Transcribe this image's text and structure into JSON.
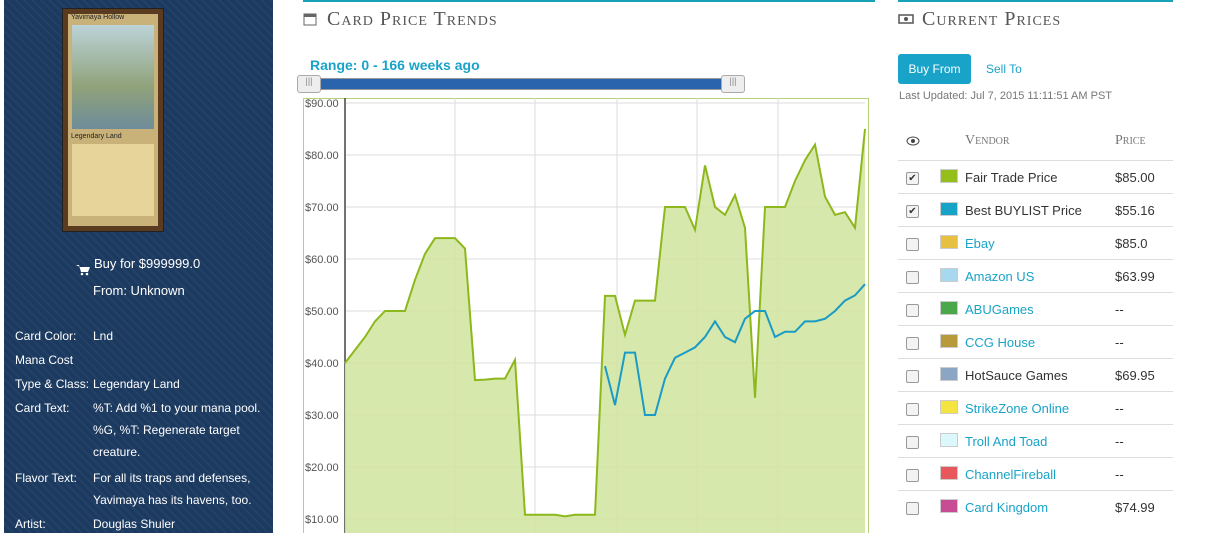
{
  "sidebar": {
    "card_name": "Yavimaya Hollow",
    "card_type": "Legendary Land",
    "buy_for": "Buy for $999999.0",
    "from": "From: Unknown",
    "details": [
      {
        "label": "Card Color:",
        "value": "Lnd"
      },
      {
        "label": "Mana Cost"
      },
      {
        "label": "Type & Class:",
        "value": "Legendary Land"
      },
      {
        "label": "Card Text:",
        "value": "%T: Add %1 to your mana pool.",
        "value2": "%G, %T: Regenerate target creature."
      },
      {
        "label": "Flavor Text:",
        "value": "For all its traps and defenses, Yavimaya has its havens, too."
      },
      {
        "label": "Artist:",
        "value": "Douglas Shuler"
      }
    ]
  },
  "price_trends": {
    "title": "Card Price Trends",
    "range": "Range: 0 - 166 weeks ago"
  },
  "chart_data": {
    "type": "area",
    "ylim": [
      7.3,
      90
    ],
    "grid": true,
    "yticks": [
      {
        "value": 10,
        "label": "$10.00"
      },
      {
        "value": 20,
        "label": "$20.00"
      },
      {
        "value": 30,
        "label": "$30.00"
      },
      {
        "value": 40,
        "label": "$40.00"
      },
      {
        "value": 50,
        "label": "$50.00"
      },
      {
        "value": 60,
        "label": "$60.00"
      },
      {
        "value": 70,
        "label": "$70.00"
      },
      {
        "value": 80,
        "label": "$80.00"
      },
      {
        "value": 90,
        "label": "$90.00"
      }
    ],
    "series": [
      {
        "name": "Fair Trade Price",
        "color": "#8db81c",
        "fill": "#d3e6a3",
        "values": [
          40,
          42.5,
          45,
          48,
          50,
          50,
          50,
          56,
          61,
          64,
          64,
          64,
          62,
          36.7,
          36.8,
          37,
          37,
          40.6,
          10.8,
          10.8,
          10.8,
          10.8,
          10.5,
          10.8,
          10.8,
          10.8,
          52.9,
          52.9,
          45.4,
          52,
          52,
          52,
          70,
          70,
          70,
          65.6,
          78,
          70,
          68.5,
          72.3,
          66,
          33.3,
          70,
          70,
          70,
          75,
          79,
          82,
          72,
          68.5,
          69,
          66,
          85
        ]
      },
      {
        "name": "Best BUYLIST Price",
        "color": "#1a9bc5",
        "values": [
          null,
          null,
          null,
          null,
          null,
          null,
          null,
          null,
          null,
          null,
          null,
          null,
          null,
          null,
          null,
          null,
          null,
          null,
          null,
          null,
          null,
          null,
          null,
          null,
          null,
          null,
          39.4,
          31.9,
          42,
          42,
          30,
          30,
          37,
          41,
          42,
          43,
          45,
          48,
          45,
          44,
          48.5,
          50,
          50,
          45,
          46,
          46,
          48,
          48,
          48.5,
          50,
          52,
          53,
          55.16
        ]
      }
    ]
  },
  "current_prices": {
    "title": "Current Prices",
    "buy_button": "Buy From",
    "sell_link": "Sell To",
    "last_updated": "Last Updated: Jul 7, 2015 11:11:51 AM PST",
    "vendor_header": "Vendor",
    "price_header": "Price",
    "vendors": [
      {
        "name": "Fair Trade Price",
        "color": "#94be1b",
        "price": "$85.00",
        "checked": true
      },
      {
        "name": "Best BUYLIST Price",
        "color": "#17a2c7",
        "price": "$55.16",
        "checked": true
      },
      {
        "name": "Ebay",
        "color": "#e6c040",
        "price": "$85.0",
        "link": true
      },
      {
        "name": "Amazon US",
        "color": "#a8d8f0",
        "price": "$63.99",
        "link": true
      },
      {
        "name": "ABUGames",
        "color": "#4aa84a",
        "price": "--",
        "link": true
      },
      {
        "name": "CCG House",
        "color": "#b89a3a",
        "price": "--",
        "link": true
      },
      {
        "name": "HotSauce Games",
        "color": "#8aa6c4",
        "price": "$69.95"
      },
      {
        "name": "StrikeZone Online",
        "color": "#f5e340",
        "price": "--",
        "link": true
      },
      {
        "name": "Troll And Toad",
        "color": "#dcf8fa",
        "price": "--",
        "link": true
      },
      {
        "name": "ChannelFireball",
        "color": "#e8575a",
        "price": "--",
        "link": true
      },
      {
        "name": "Card Kingdom",
        "color": "#c84c94",
        "price": "$74.99",
        "link": true
      }
    ]
  }
}
